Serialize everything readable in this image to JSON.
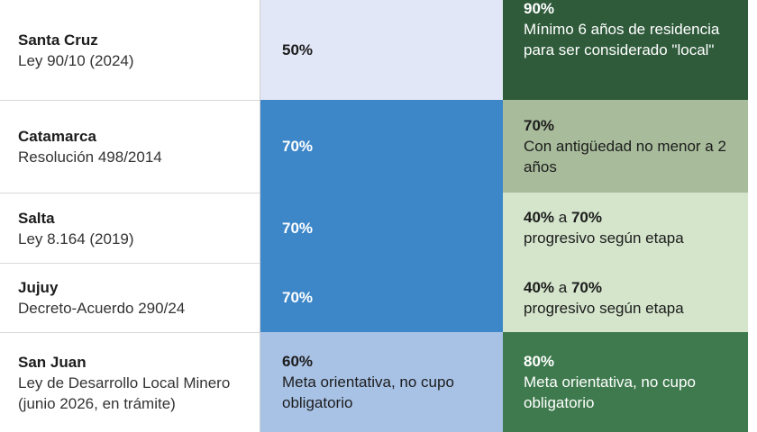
{
  "rows": [
    {
      "province": "Santa Cruz",
      "law": "Ley 90/10 (2024)",
      "workers_pct": "50%",
      "workers_note": "",
      "local_pct": "90%",
      "local_note": "Mínimo 6 años de residencia para ser considerado \"local\""
    },
    {
      "province": "Catamarca",
      "law": "Resolución 498/2014",
      "workers_pct": "70%",
      "workers_note": "",
      "local_pct": "70%",
      "local_note": "Con antigüedad no menor a 2 años"
    },
    {
      "province": "Salta",
      "law": "Ley 8.164 (2019)",
      "workers_pct": "70%",
      "workers_note": "",
      "local_from": "40%",
      "local_joiner": " a ",
      "local_to": "70%",
      "local_note": "progresivo según etapa"
    },
    {
      "province": "Jujuy",
      "law": "Decreto-Acuerdo 290/24",
      "workers_pct": "70%",
      "workers_note": "",
      "local_from": "40%",
      "local_joiner": " a ",
      "local_to": "70%",
      "local_note": "progresivo según etapa"
    },
    {
      "province": "San Juan",
      "law": "Ley de Desarrollo Local Minero (junio 2026, en trámite)",
      "workers_pct": "60%",
      "workers_note": "Meta orientativa, no cupo obligatorio",
      "local_pct": "80%",
      "local_note": "Meta orientativa, no cupo obligatorio"
    }
  ],
  "colors": {
    "workers_light": "#e1e7f6",
    "workers_blue": "#3d87c9",
    "workers_mid": "#a8c2e6",
    "local_dark": "#2f5b3b",
    "local_sage": "#a8bc9b",
    "local_pale": "#d4e5cb",
    "local_green": "#3e7a4d"
  }
}
